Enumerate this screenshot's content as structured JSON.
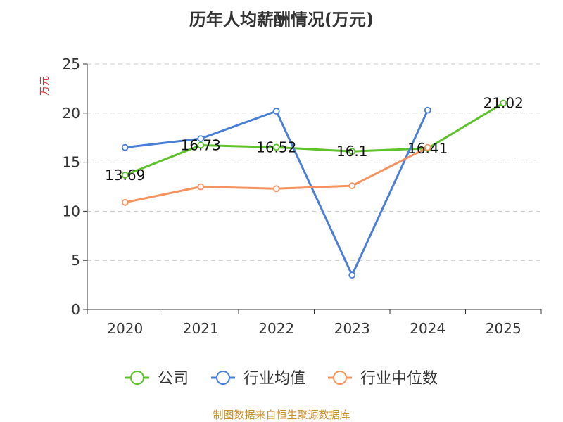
{
  "chart_data": {
    "type": "line",
    "title": "历年人均薪酬情况(万元)",
    "ylabel": "万元",
    "categories": [
      "2020",
      "2021",
      "2022",
      "2023",
      "2024",
      "2025"
    ],
    "ylim": [
      0,
      25
    ],
    "yticks": [
      0,
      5,
      10,
      15,
      20,
      25
    ],
    "grid": true,
    "legend_position": "bottom",
    "series": [
      {
        "name": "公司",
        "color": "#5ec22a",
        "values": [
          13.69,
          16.73,
          16.52,
          16.1,
          16.41,
          21.02
        ],
        "labels": [
          "13.69",
          "16.73",
          "16.52",
          "16.1",
          "16.41",
          "21.02"
        ]
      },
      {
        "name": "行业均值",
        "color": "#4a7fd8",
        "values": [
          16.5,
          17.4,
          20.2,
          3.5,
          20.3,
          null
        ]
      },
      {
        "name": "行业中位数",
        "color": "#f5925e",
        "values": [
          10.9,
          12.5,
          12.3,
          12.6,
          16.5,
          null
        ]
      }
    ]
  },
  "source_text": "制图数据来自恒生聚源数据库"
}
